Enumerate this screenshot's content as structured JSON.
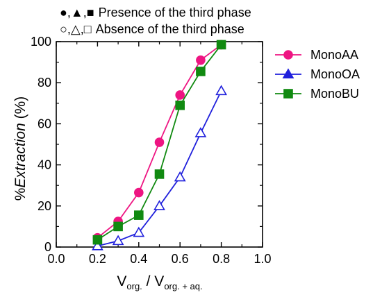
{
  "notes": [
    {
      "symbols": "●,▲,■",
      "text": "Presence of the third phase"
    },
    {
      "symbols": "○,△,□",
      "text": "Absence of the third phase"
    }
  ],
  "chart_data": {
    "type": "line",
    "xlabel": {
      "main": "V",
      "sub1": "org.",
      "sep": " / V",
      "sub2": "org. + aq."
    },
    "ylabel": {
      "prefix": "%",
      "italic": "Extraction",
      "suffix": " (%)"
    },
    "xlim": [
      0,
      1.0
    ],
    "ylim": [
      0,
      100
    ],
    "xticks": [
      "0.0",
      "0.2",
      "0.4",
      "0.6",
      "0.8",
      "1.0"
    ],
    "yticks": [
      "0",
      "20",
      "40",
      "60",
      "80",
      "100"
    ],
    "xtick_values": [
      0,
      0.2,
      0.4,
      0.6,
      0.8,
      1.0
    ],
    "ytick_values": [
      0,
      20,
      40,
      60,
      80,
      100
    ],
    "legend_position": "top-right",
    "series": [
      {
        "name": "MonoAA",
        "color": "#ee1582",
        "marker": "circle",
        "x": [
          0.2,
          0.3,
          0.4,
          0.5,
          0.6,
          0.7,
          0.8
        ],
        "y": [
          4.5,
          12.5,
          26.5,
          51,
          74,
          91,
          98.5
        ],
        "filled": [
          true,
          true,
          true,
          true,
          true,
          true,
          true
        ]
      },
      {
        "name": "MonoOA",
        "color": "#1f1fdc",
        "marker": "triangle",
        "x": [
          0.2,
          0.3,
          0.4,
          0.5,
          0.6,
          0.7,
          0.8
        ],
        "y": [
          0.5,
          3,
          7,
          20,
          34,
          55.5,
          76
        ],
        "filled": [
          false,
          false,
          false,
          false,
          false,
          false,
          false
        ]
      },
      {
        "name": "MonoBU",
        "color": "#118a11",
        "marker": "square",
        "x": [
          0.2,
          0.3,
          0.4,
          0.5,
          0.6,
          0.7,
          0.8
        ],
        "y": [
          3.5,
          10,
          15.5,
          35.5,
          69,
          85.5,
          98.5
        ],
        "filled": [
          true,
          true,
          true,
          true,
          true,
          true,
          true
        ]
      }
    ]
  }
}
